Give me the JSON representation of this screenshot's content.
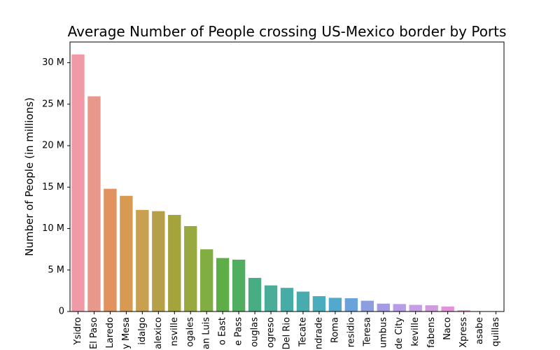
{
  "chart_data": {
    "type": "bar",
    "title": "Average Number of People crossing US-Mexico border by Ports",
    "xlabel": "",
    "ylabel": "Number of People (in millions)",
    "ylim": [
      0,
      32.5
    ],
    "y_ticks": [
      0,
      5,
      10,
      15,
      20,
      25,
      30
    ],
    "y_tick_labels": [
      "0",
      "5 M",
      "10 M",
      "15 M",
      "20 M",
      "25 M",
      "30 M"
    ],
    "grid": false,
    "legend": "none",
    "categories": [
      "Ysidro",
      "El Paso",
      "Laredo",
      "y Mesa",
      "idalgo",
      "alexico",
      "nsville",
      "ogales",
      "an Luis",
      "o East",
      "e Pass",
      "ouglas",
      "ogreso",
      "Del Rio",
      "Tecate",
      "ndrade",
      "Roma",
      "residio",
      "Teresa",
      "umbus",
      "de City",
      "keville",
      "fabens",
      "Naco",
      "Xpress",
      "asabe",
      "quillas"
    ],
    "values": [
      31.0,
      25.95,
      14.8,
      13.95,
      12.25,
      12.1,
      11.65,
      10.3,
      7.5,
      6.45,
      6.25,
      4.05,
      3.15,
      2.85,
      2.4,
      1.85,
      1.65,
      1.6,
      1.3,
      0.95,
      0.9,
      0.8,
      0.75,
      0.6,
      0.15,
      0.03,
      0.02
    ],
    "colors": [
      "#ef9aa6",
      "#e8988b",
      "#e1925e",
      "#d79a50",
      "#c9a04f",
      "#b5a049",
      "#a4a33c",
      "#98a940",
      "#80ae42",
      "#5fad47",
      "#4fae60",
      "#48ad82",
      "#49ad98",
      "#46aca6",
      "#48acaf",
      "#4aadbd",
      "#52a9cc",
      "#6aa2db",
      "#8c9de0",
      "#a39ce5",
      "#b79ce8",
      "#c89de8",
      "#d29ae1",
      "#e393dc",
      "#ea95cf",
      "#ef97bf",
      "#f19aae"
    ]
  }
}
